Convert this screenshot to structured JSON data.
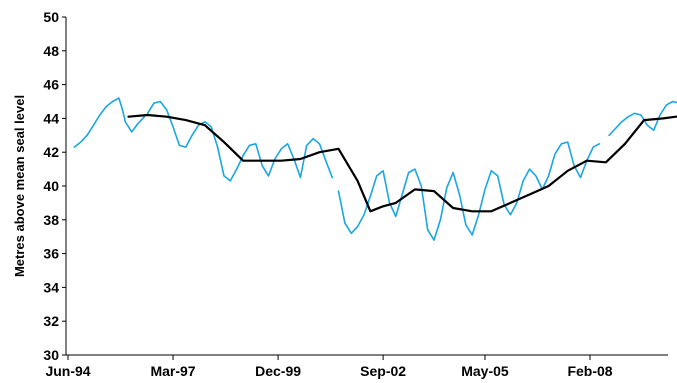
{
  "chart_data": {
    "type": "line",
    "title": "",
    "xlabel": "",
    "ylabel": "Metres above mean seal level",
    "x_axis": {
      "type": "date",
      "min": "1994-06",
      "max": "2010-01",
      "tick_values": [
        "1994-06",
        "1997-03",
        "1999-12",
        "2002-09",
        "2005-05",
        "2008-02"
      ],
      "tick_labels": [
        "Jun-94",
        "Mar-97",
        "Dec-99",
        "Sep-02",
        "May-05",
        "Feb-08"
      ]
    },
    "y_axis": {
      "min": 30,
      "max": 50,
      "step": 2,
      "tick_labels": [
        "30",
        "32",
        "34",
        "36",
        "38",
        "40",
        "42",
        "44",
        "46",
        "48",
        "50"
      ]
    },
    "grid": false,
    "legend": "none",
    "series": [
      {
        "color": "#1aa7e0",
        "line_style": "solid",
        "segments": [
          [
            [
              "1994-08",
              42.3
            ],
            [
              "1994-10",
              42.6
            ],
            [
              "1994-12",
              43.0
            ],
            [
              "1995-02",
              43.6
            ],
            [
              "1995-04",
              44.2
            ],
            [
              "1995-06",
              44.7
            ],
            [
              "1995-08",
              45.0
            ],
            [
              "1995-10",
              45.2
            ],
            [
              "1995-11",
              44.6
            ],
            [
              "1995-12",
              43.8
            ],
            [
              "1996-02",
              43.2
            ],
            [
              "1996-04",
              43.7
            ],
            [
              "1996-06",
              44.1
            ]
          ],
          [
            [
              "1996-07",
              44.3
            ],
            [
              "1996-09",
              44.9
            ],
            [
              "1996-11",
              45.0
            ],
            [
              "1997-01",
              44.5
            ],
            [
              "1997-03",
              43.5
            ],
            [
              "1997-05",
              42.4
            ],
            [
              "1997-07",
              42.3
            ],
            [
              "1997-09",
              43.0
            ],
            [
              "1997-11",
              43.6
            ],
            [
              "1998-01",
              43.8
            ],
            [
              "1998-03",
              43.5
            ],
            [
              "1998-05",
              42.3
            ],
            [
              "1998-07",
              40.6
            ],
            [
              "1998-09",
              40.3
            ],
            [
              "1998-11",
              41.0
            ],
            [
              "1999-01",
              41.8
            ],
            [
              "1999-03",
              42.4
            ],
            [
              "1999-05",
              42.5
            ],
            [
              "1999-07",
              41.2
            ],
            [
              "1999-09",
              40.6
            ],
            [
              "1999-11",
              41.6
            ],
            [
              "2000-01",
              42.2
            ],
            [
              "2000-03",
              42.5
            ],
            [
              "2000-05",
              41.6
            ],
            [
              "2000-07",
              40.5
            ],
            [
              "2000-09",
              42.4
            ],
            [
              "2000-11",
              42.8
            ],
            [
              "2001-01",
              42.5
            ],
            [
              "2001-03",
              41.5
            ],
            [
              "2001-05",
              40.5
            ]
          ],
          [
            [
              "2001-07",
              39.7
            ],
            [
              "2001-09",
              37.8
            ],
            [
              "2001-11",
              37.2
            ],
            [
              "2002-01",
              37.6
            ],
            [
              "2002-03",
              38.3
            ],
            [
              "2002-05",
              39.4
            ],
            [
              "2002-07",
              40.6
            ],
            [
              "2002-09",
              40.9
            ],
            [
              "2002-11",
              39.0
            ],
            [
              "2003-01",
              38.2
            ],
            [
              "2003-03",
              39.5
            ],
            [
              "2003-05",
              40.8
            ],
            [
              "2003-07",
              41.0
            ],
            [
              "2003-09",
              40.0
            ],
            [
              "2003-11",
              37.4
            ],
            [
              "2004-01",
              36.8
            ],
            [
              "2004-03",
              38.0
            ],
            [
              "2004-05",
              39.9
            ],
            [
              "2004-07",
              40.8
            ],
            [
              "2004-09",
              39.5
            ],
            [
              "2004-11",
              37.7
            ],
            [
              "2005-01",
              37.1
            ],
            [
              "2005-03",
              38.3
            ],
            [
              "2005-05",
              39.8
            ],
            [
              "2005-07",
              40.9
            ],
            [
              "2005-09",
              40.6
            ],
            [
              "2005-11",
              38.9
            ],
            [
              "2006-01",
              38.3
            ],
            [
              "2006-03",
              39.0
            ],
            [
              "2006-05",
              40.3
            ],
            [
              "2006-07",
              41.0
            ],
            [
              "2006-09",
              40.6
            ],
            [
              "2006-11",
              39.8
            ],
            [
              "2007-01",
              40.6
            ],
            [
              "2007-03",
              41.9
            ],
            [
              "2007-05",
              42.5
            ],
            [
              "2007-07",
              42.6
            ],
            [
              "2007-09",
              41.2
            ],
            [
              "2007-11",
              40.5
            ],
            [
              "2008-01",
              41.5
            ],
            [
              "2008-03",
              42.3
            ],
            [
              "2008-05",
              42.5
            ]
          ],
          [
            [
              "2008-08",
              43.0
            ],
            [
              "2008-10",
              43.4
            ],
            [
              "2008-12",
              43.8
            ],
            [
              "2009-02",
              44.1
            ],
            [
              "2009-04",
              44.3
            ],
            [
              "2009-06",
              44.2
            ],
            [
              "2009-08",
              43.6
            ],
            [
              "2009-10",
              43.3
            ],
            [
              "2009-12",
              44.2
            ],
            [
              "2010-02",
              44.8
            ],
            [
              "2010-04",
              45.0
            ],
            [
              "2010-06",
              44.9
            ],
            [
              "2010-08",
              44.4
            ]
          ]
        ]
      },
      {
        "color": "#000000",
        "line_style": "solid",
        "segments": [
          [
            [
              "1996-01",
              44.1
            ],
            [
              "1996-07",
              44.2
            ],
            [
              "1997-01",
              44.1
            ],
            [
              "1997-07",
              43.9
            ],
            [
              "1998-01",
              43.6
            ],
            [
              "1998-07",
              42.6
            ],
            [
              "1999-01",
              41.5
            ],
            [
              "1999-07",
              41.5
            ],
            [
              "2000-01",
              41.5
            ],
            [
              "2000-07",
              41.6
            ],
            [
              "2001-01",
              42.0
            ],
            [
              "2001-07",
              42.2
            ],
            [
              "2002-01",
              40.3
            ],
            [
              "2002-05",
              38.5
            ],
            [
              "2002-09",
              38.8
            ],
            [
              "2003-01",
              39.0
            ],
            [
              "2003-07",
              39.8
            ],
            [
              "2004-01",
              39.7
            ],
            [
              "2004-07",
              38.7
            ],
            [
              "2005-01",
              38.5
            ],
            [
              "2005-07",
              38.5
            ],
            [
              "2006-01",
              39.0
            ],
            [
              "2006-07",
              39.5
            ],
            [
              "2007-01",
              40.0
            ],
            [
              "2007-07",
              40.9
            ],
            [
              "2008-01",
              41.5
            ],
            [
              "2008-07",
              41.4
            ],
            [
              "2009-01",
              42.5
            ],
            [
              "2009-07",
              43.9
            ],
            [
              "2010-01",
              44.0
            ],
            [
              "2010-09",
              44.2
            ]
          ]
        ]
      }
    ]
  }
}
